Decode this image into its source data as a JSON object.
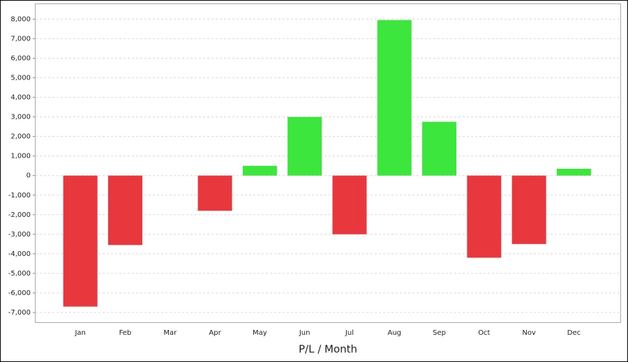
{
  "chart_data": {
    "type": "bar",
    "x_label": "P/L / Month",
    "categories": [
      "Jan",
      "Feb",
      "Mar",
      "Apr",
      "May",
      "Jun",
      "Jul",
      "Aug",
      "Sep",
      "Oct",
      "Nov",
      "Dec"
    ],
    "values": [
      -6700,
      -3550,
      0,
      -1800,
      500,
      3000,
      -3000,
      7950,
      2750,
      -4200,
      -3500,
      350
    ],
    "positive_color": "#3de63d",
    "negative_color": "#e8373d",
    "ylim": [
      -7500,
      8800
    ],
    "yticks": [
      {
        "value": -7000,
        "label": "-7,000"
      },
      {
        "value": -6000,
        "label": "-6,000"
      },
      {
        "value": -5000,
        "label": "-5,000"
      },
      {
        "value": -4000,
        "label": "-4,000"
      },
      {
        "value": -3000,
        "label": "-3,000"
      },
      {
        "value": -2000,
        "label": "-2,000"
      },
      {
        "value": -1000,
        "label": "-1,000"
      },
      0,
      {
        "value": 1000,
        "label": "1,000"
      },
      {
        "value": 2000,
        "label": "2,000"
      },
      {
        "value": 3000,
        "label": "3,000"
      },
      {
        "value": 4000,
        "label": "4,000"
      },
      {
        "value": 5000,
        "label": "5,000"
      },
      {
        "value": 6000,
        "label": "6,000"
      },
      {
        "value": 7000,
        "label": "7,000"
      },
      {
        "value": 8000,
        "label": "8,000"
      }
    ],
    "grid": true
  }
}
